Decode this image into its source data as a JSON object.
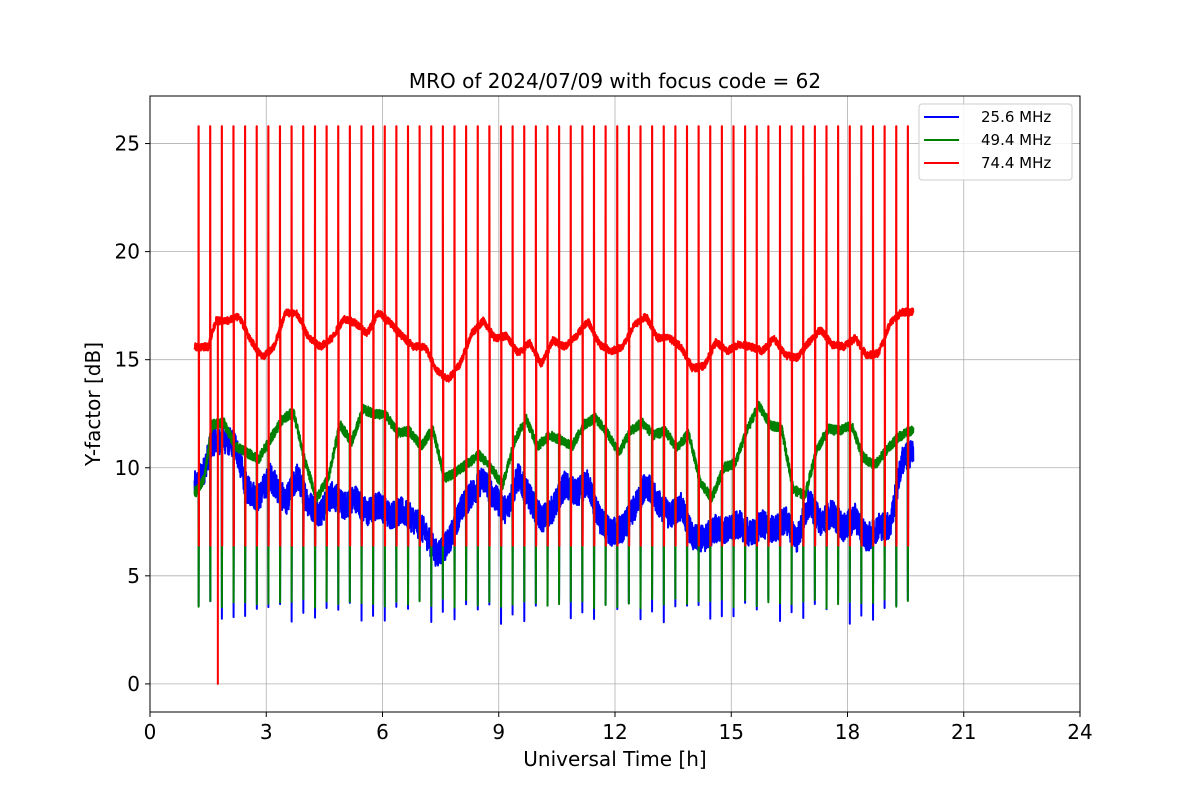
{
  "chart_data": {
    "type": "line",
    "title": "MRO of 2024/07/09 with focus code = 62",
    "xlabel": "Universal Time [h]",
    "ylabel": "Y-factor [dB]",
    "xlim": [
      0,
      24
    ],
    "ylim": [
      -1.3,
      27.2
    ],
    "xticks": [
      0,
      3,
      6,
      9,
      12,
      15,
      18,
      21,
      24
    ],
    "yticks": [
      0,
      5,
      10,
      15,
      20,
      25
    ],
    "grid": true,
    "legend_position": "top-right",
    "x_range_of_data": [
      1.15,
      19.7
    ],
    "calibration_pulse_spacing_h": 0.3,
    "series": [
      {
        "name": "25.6 MHz",
        "color": "#0000ff",
        "baseline": [
          [
            1.2,
            9.2
          ],
          [
            1.4,
            9.9
          ],
          [
            1.6,
            11.2
          ],
          [
            1.9,
            11.3
          ],
          [
            2.2,
            11.1
          ],
          [
            2.5,
            9.0
          ],
          [
            2.8,
            8.6
          ],
          [
            3.1,
            9.6
          ],
          [
            3.5,
            8.4
          ],
          [
            3.8,
            9.6
          ],
          [
            4.1,
            8.3
          ],
          [
            4.4,
            7.9
          ],
          [
            4.7,
            8.8
          ],
          [
            5.0,
            8.2
          ],
          [
            5.3,
            8.6
          ],
          [
            5.6,
            7.9
          ],
          [
            5.9,
            8.3
          ],
          [
            6.2,
            7.8
          ],
          [
            6.5,
            8.0
          ],
          [
            6.8,
            7.6
          ],
          [
            7.1,
            7.0
          ],
          [
            7.4,
            6.0
          ],
          [
            7.7,
            6.5
          ],
          [
            8.0,
            8.0
          ],
          [
            8.3,
            8.8
          ],
          [
            8.6,
            9.5
          ],
          [
            8.9,
            8.6
          ],
          [
            9.2,
            8.0
          ],
          [
            9.5,
            9.6
          ],
          [
            9.8,
            8.6
          ],
          [
            10.1,
            7.6
          ],
          [
            10.4,
            8.1
          ],
          [
            10.7,
            9.2
          ],
          [
            11.0,
            8.8
          ],
          [
            11.3,
            9.3
          ],
          [
            11.6,
            7.6
          ],
          [
            11.9,
            7.0
          ],
          [
            12.2,
            7.2
          ],
          [
            12.5,
            8.1
          ],
          [
            12.8,
            9.3
          ],
          [
            13.1,
            8.4
          ],
          [
            13.4,
            7.8
          ],
          [
            13.7,
            8.2
          ],
          [
            14.0,
            6.8
          ],
          [
            14.3,
            6.7
          ],
          [
            14.6,
            7.2
          ],
          [
            14.9,
            7.1
          ],
          [
            15.2,
            7.4
          ],
          [
            15.5,
            6.9
          ],
          [
            15.8,
            7.4
          ],
          [
            16.1,
            7.1
          ],
          [
            16.4,
            7.6
          ],
          [
            16.7,
            6.7
          ],
          [
            17.0,
            8.4
          ],
          [
            17.3,
            7.5
          ],
          [
            17.6,
            7.9
          ],
          [
            17.9,
            7.2
          ],
          [
            18.2,
            7.7
          ],
          [
            18.5,
            6.7
          ],
          [
            18.8,
            7.3
          ],
          [
            19.1,
            7.3
          ],
          [
            19.4,
            10.3
          ],
          [
            19.7,
            10.8
          ]
        ],
        "dips": [
          3.5,
          3.8,
          2.9,
          3.2,
          3.0,
          3.6
        ],
        "peak": 6.4
      },
      {
        "name": "49.4 MHz",
        "color": "#008000",
        "baseline": [
          [
            1.2,
            8.9
          ],
          [
            1.4,
            9.5
          ],
          [
            1.6,
            12.0
          ],
          [
            1.9,
            12.1
          ],
          [
            2.2,
            11.0
          ],
          [
            2.5,
            10.7
          ],
          [
            2.8,
            10.4
          ],
          [
            3.1,
            11.3
          ],
          [
            3.4,
            12.2
          ],
          [
            3.7,
            12.6
          ],
          [
            4.0,
            10.3
          ],
          [
            4.3,
            8.6
          ],
          [
            4.6,
            9.5
          ],
          [
            4.9,
            12.0
          ],
          [
            5.2,
            11.2
          ],
          [
            5.5,
            12.7
          ],
          [
            5.8,
            12.5
          ],
          [
            6.1,
            12.4
          ],
          [
            6.4,
            11.6
          ],
          [
            6.7,
            11.7
          ],
          [
            7.0,
            11.0
          ],
          [
            7.3,
            11.8
          ],
          [
            7.6,
            9.5
          ],
          [
            7.9,
            9.8
          ],
          [
            8.2,
            10.2
          ],
          [
            8.5,
            10.6
          ],
          [
            8.8,
            10.0
          ],
          [
            9.1,
            9.2
          ],
          [
            9.4,
            11.2
          ],
          [
            9.7,
            12.3
          ],
          [
            10.0,
            11.0
          ],
          [
            10.3,
            11.5
          ],
          [
            10.6,
            11.3
          ],
          [
            10.9,
            11.0
          ],
          [
            11.2,
            12.0
          ],
          [
            11.5,
            12.3
          ],
          [
            11.8,
            11.6
          ],
          [
            12.1,
            10.7
          ],
          [
            12.4,
            11.7
          ],
          [
            12.7,
            12.1
          ],
          [
            13.0,
            11.5
          ],
          [
            13.3,
            11.7
          ],
          [
            13.6,
            10.9
          ],
          [
            13.9,
            11.6
          ],
          [
            14.2,
            9.3
          ],
          [
            14.5,
            8.6
          ],
          [
            14.8,
            10.0
          ],
          [
            15.1,
            10.2
          ],
          [
            15.4,
            11.7
          ],
          [
            15.7,
            12.9
          ],
          [
            16.0,
            12.0
          ],
          [
            16.3,
            11.8
          ],
          [
            16.6,
            9.0
          ],
          [
            16.9,
            8.7
          ],
          [
            17.2,
            10.8
          ],
          [
            17.5,
            11.8
          ],
          [
            17.8,
            11.7
          ],
          [
            18.1,
            12.0
          ],
          [
            18.4,
            10.5
          ],
          [
            18.7,
            10.1
          ],
          [
            19.0,
            10.8
          ],
          [
            19.3,
            11.4
          ],
          [
            19.6,
            11.7
          ]
        ],
        "dips": [
          3.7,
          3.8,
          3.6,
          3.8
        ],
        "peak": 6.4
      },
      {
        "name": "74.4 MHz",
        "color": "#ff0000",
        "baseline": [
          [
            1.2,
            15.6
          ],
          [
            1.5,
            15.6
          ],
          [
            1.7,
            16.8
          ],
          [
            2.0,
            16.8
          ],
          [
            2.3,
            17.0
          ],
          [
            2.6,
            15.9
          ],
          [
            2.9,
            15.1
          ],
          [
            3.2,
            15.6
          ],
          [
            3.5,
            17.2
          ],
          [
            3.8,
            17.1
          ],
          [
            4.1,
            16.0
          ],
          [
            4.4,
            15.6
          ],
          [
            4.7,
            16.0
          ],
          [
            5.0,
            16.9
          ],
          [
            5.3,
            16.7
          ],
          [
            5.6,
            16.2
          ],
          [
            5.9,
            17.2
          ],
          [
            6.2,
            16.7
          ],
          [
            6.5,
            16.1
          ],
          [
            6.8,
            15.6
          ],
          [
            7.1,
            15.6
          ],
          [
            7.4,
            14.5
          ],
          [
            7.7,
            14.1
          ],
          [
            8.0,
            14.8
          ],
          [
            8.3,
            16.2
          ],
          [
            8.6,
            16.8
          ],
          [
            8.9,
            16.0
          ],
          [
            9.2,
            16.1
          ],
          [
            9.5,
            15.3
          ],
          [
            9.8,
            15.8
          ],
          [
            10.1,
            14.8
          ],
          [
            10.4,
            15.9
          ],
          [
            10.7,
            15.6
          ],
          [
            11.0,
            16.1
          ],
          [
            11.3,
            16.8
          ],
          [
            11.6,
            15.7
          ],
          [
            11.9,
            15.4
          ],
          [
            12.2,
            15.6
          ],
          [
            12.5,
            16.6
          ],
          [
            12.8,
            17.0
          ],
          [
            13.1,
            16.0
          ],
          [
            13.4,
            16.0
          ],
          [
            13.7,
            15.6
          ],
          [
            14.0,
            14.6
          ],
          [
            14.3,
            14.7
          ],
          [
            14.6,
            15.8
          ],
          [
            14.9,
            15.4
          ],
          [
            15.2,
            15.7
          ],
          [
            15.5,
            15.6
          ],
          [
            15.8,
            15.4
          ],
          [
            16.1,
            16.0
          ],
          [
            16.4,
            15.2
          ],
          [
            16.7,
            15.1
          ],
          [
            17.0,
            15.8
          ],
          [
            17.3,
            16.4
          ],
          [
            17.6,
            15.7
          ],
          [
            17.9,
            15.6
          ],
          [
            18.2,
            16.0
          ],
          [
            18.5,
            15.2
          ],
          [
            18.8,
            15.3
          ],
          [
            19.1,
            16.7
          ],
          [
            19.4,
            17.2
          ],
          [
            19.7,
            17.2
          ]
        ],
        "spike_peak": 25.8,
        "dip_min": 6.4,
        "outlier": [
          1.75,
          0.0
        ]
      }
    ]
  },
  "legend": [
    {
      "label": "25.6 MHz",
      "color": "#0000ff"
    },
    {
      "label": "49.4 MHz",
      "color": "#008000"
    },
    {
      "label": "74.4 MHz",
      "color": "#ff0000"
    }
  ]
}
